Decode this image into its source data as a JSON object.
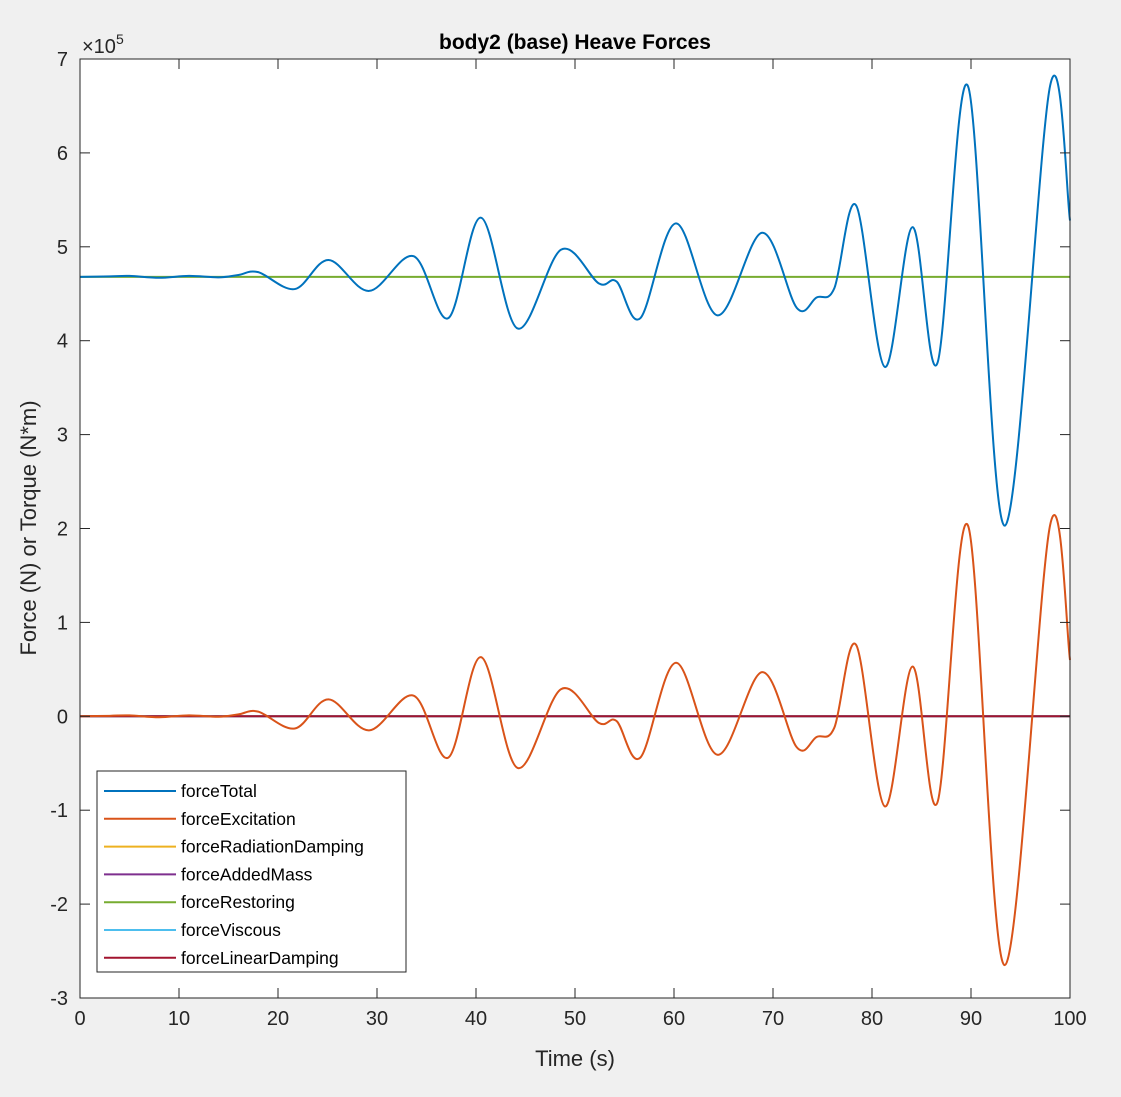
{
  "chart_data": {
    "type": "line",
    "title": "body2 (base) Heave Forces",
    "xlabel": "Time (s)",
    "ylabel": "Force (N) or Torque (N*m)",
    "y_exponent_label": "×10",
    "y_exponent_power": "5",
    "xlim": [
      0,
      100
    ],
    "ylim": [
      -3,
      7
    ],
    "y_scale_factor": 100000,
    "x_ticks": [
      "0",
      "10",
      "20",
      "30",
      "40",
      "50",
      "60",
      "70",
      "80",
      "90",
      "100"
    ],
    "y_ticks": [
      "-3",
      "-2",
      "-1",
      "0",
      "1",
      "2",
      "3",
      "4",
      "5",
      "6",
      "7"
    ],
    "grid": false,
    "legend_position": "bottom-left",
    "restoring_offset": 4.68,
    "series": [
      {
        "name": "forceTotal",
        "color": "#0072bd",
        "derived_from": "forceExcitation + forceRestoring"
      },
      {
        "name": "forceExcitation",
        "color": "#d95319",
        "x": [
          0,
          3,
          5,
          8,
          11,
          14,
          16,
          18,
          21.7,
          25.1,
          29.2,
          33.7,
          37.2,
          40.5,
          44.2,
          48.6,
          52.4,
          54.2,
          56.6,
          60.2,
          64.4,
          68.9,
          72.4,
          74.4,
          76.2,
          78.4,
          81.3,
          84.1,
          86.6,
          89.7,
          93.4,
          98,
          100
        ],
        "values": [
          0,
          0.005,
          0.01,
          -0.01,
          0.01,
          -0.005,
          0.02,
          0.05,
          -0.13,
          0.18,
          -0.15,
          0.22,
          -0.44,
          0.63,
          -0.55,
          0.29,
          -0.07,
          -0.05,
          -0.44,
          0.57,
          -0.41,
          0.47,
          -0.33,
          -0.22,
          -0.12,
          0.76,
          -0.96,
          0.53,
          -0.92,
          2.03,
          -2.65,
          2.04,
          0.6
        ]
      },
      {
        "name": "forceRadiationDamping",
        "color": "#edb120",
        "constant": 0
      },
      {
        "name": "forceAddedMass",
        "color": "#7e2f8e",
        "constant": 0
      },
      {
        "name": "forceRestoring",
        "color": "#77ac30",
        "constant": 4.68
      },
      {
        "name": "forceViscous",
        "color": "#4dbeee",
        "constant": 0
      },
      {
        "name": "forceLinearDamping",
        "color": "#a2142f",
        "constant": 0
      }
    ]
  }
}
